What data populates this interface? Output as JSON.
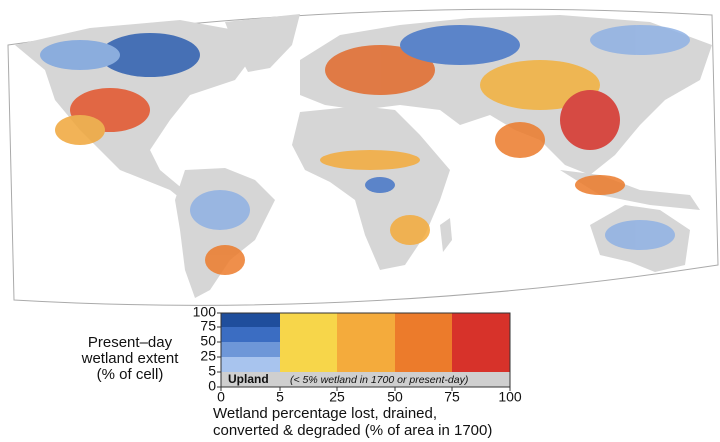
{
  "legend": {
    "y_title": [
      "Present–day",
      "wetland extent",
      "(% of cell)"
    ],
    "yticks": [
      100,
      75,
      50,
      25,
      5,
      0
    ],
    "xticks": [
      0,
      5,
      25,
      50,
      75,
      100
    ],
    "upland_label": "Upland",
    "upland_note": "(< 5% wetland in 1700 or present-day)",
    "x_title": [
      "Wetland percentage lost, drained,",
      "converted & degraded  (% of area in 1700)"
    ],
    "extent_colors": [
      "#1f4e9c",
      "#3b6dc2",
      "#6e97d8",
      "#a8c4ee"
    ],
    "loss_colors": [
      "#f7d64a",
      "#f4ab3c",
      "#ec7b2b",
      "#d7322a"
    ],
    "upland_color": "#cfcfcf"
  }
}
